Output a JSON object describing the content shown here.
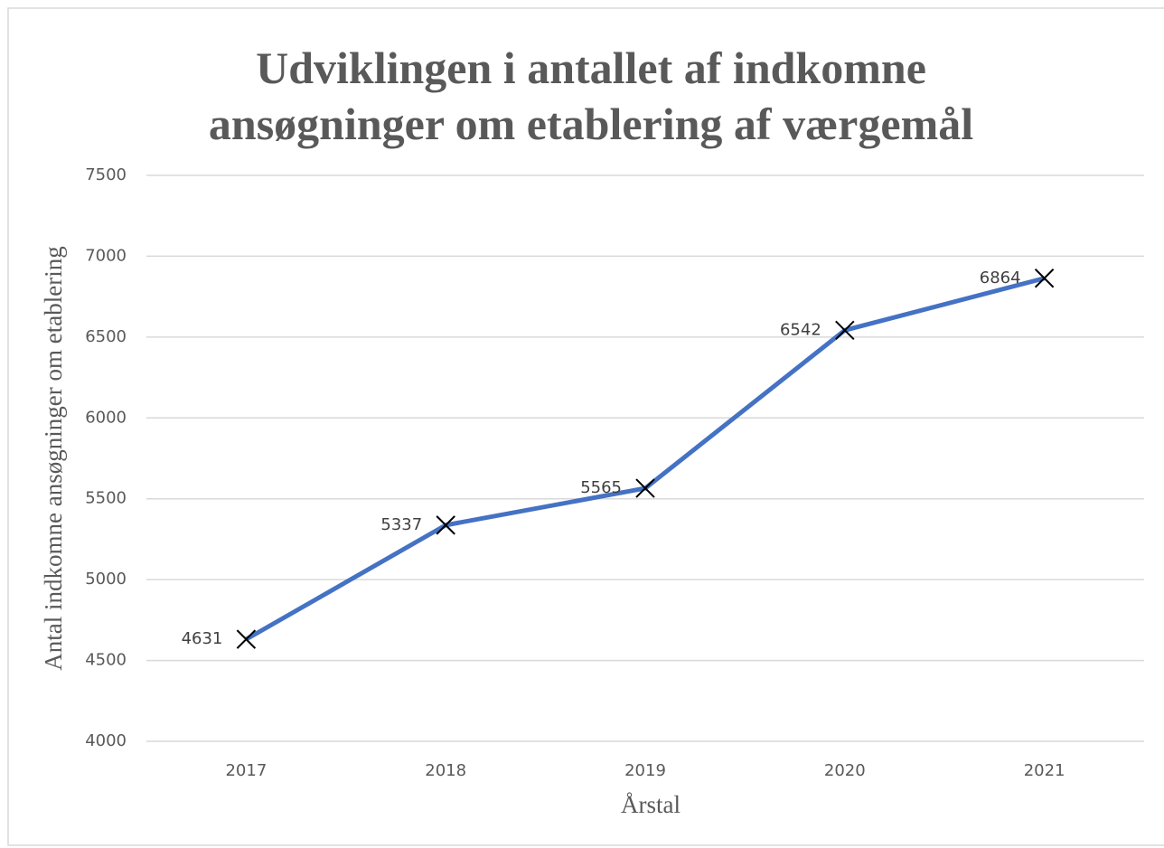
{
  "chart_data": {
    "type": "line",
    "title": "Udviklingen i antallet af indkomne ansøgninger om etablering af værgemål",
    "x_label": "Årstal",
    "y_label": "Antal indkomne ansøgninger om etablering",
    "categories": [
      "2017",
      "2018",
      "2019",
      "2020",
      "2021"
    ],
    "values": [
      4631,
      5337,
      5565,
      6542,
      6864
    ],
    "color": "#4472c4",
    "marker": "x",
    "ylim": [
      4000,
      7500
    ],
    "yticks": [
      4000,
      4500,
      5000,
      5500,
      6000,
      6500,
      7000,
      7500
    ],
    "grid": true
  }
}
